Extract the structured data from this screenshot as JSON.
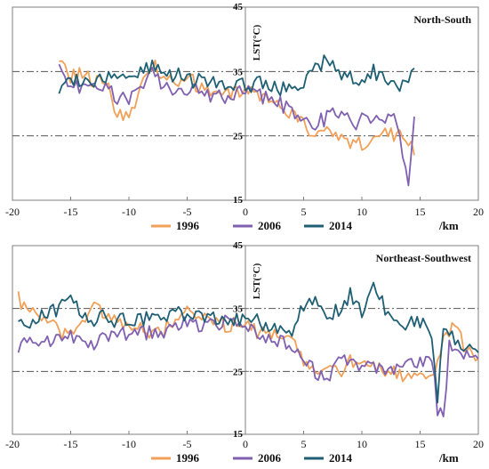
{
  "colors": {
    "1996": "#f0a058",
    "2006": "#8060b0",
    "2014": "#1e5f74",
    "axis": "#7f7f7f",
    "refline": "#555555"
  },
  "chart_data": [
    {
      "type": "line",
      "title": "North-South",
      "ylabel": "LST(°C)",
      "xunit": "/km",
      "xlim": [
        -20,
        20
      ],
      "ylim": [
        15,
        45
      ],
      "xticks": [
        "-20",
        "-15",
        "-10",
        "-5",
        "0",
        "5",
        "10",
        "15",
        "20"
      ],
      "yticks": [
        "15",
        "25",
        "35",
        "45"
      ],
      "reference_lines": [
        25,
        35
      ],
      "grid": false,
      "legend": "bottom",
      "x": [
        -16,
        -15,
        -14,
        -13,
        -12,
        -11,
        -10,
        -9,
        -8,
        -7,
        -6,
        -5,
        -4,
        -3,
        -2,
        -1,
        0,
        1,
        2,
        3,
        4,
        5,
        6,
        7,
        8,
        9,
        10,
        11,
        12,
        13,
        14,
        14.5
      ],
      "series": [
        {
          "name": "1996",
          "values": [
            37.5,
            34,
            35,
            33.5,
            33,
            29,
            27.5,
            33,
            36,
            34,
            33,
            33.5,
            33,
            32.5,
            32,
            31.5,
            32,
            31,
            30.5,
            29.5,
            28.5,
            26.5,
            25.5,
            26,
            24.5,
            23.5,
            24,
            25,
            25,
            25.5,
            24,
            22
          ]
        },
        {
          "name": "2006",
          "values": [
            35,
            32,
            33,
            32.5,
            32,
            31,
            30.5,
            33,
            35,
            33,
            32.5,
            32,
            32,
            31.5,
            31,
            31,
            32,
            31.5,
            30.5,
            30,
            29,
            27,
            26.5,
            28,
            28.5,
            27,
            27.5,
            27.5,
            27,
            27.5,
            18,
            28
          ]
        },
        {
          "name": "2014",
          "values": [
            32,
            33,
            34,
            33.5,
            34,
            34,
            34.5,
            35,
            35.5,
            35,
            34.5,
            33.5,
            33.5,
            33,
            33,
            32.5,
            33,
            33,
            33,
            32.5,
            32,
            33.5,
            35,
            37,
            34.5,
            34,
            33.5,
            35,
            33.5,
            33,
            34,
            35.5
          ]
        }
      ]
    },
    {
      "type": "line",
      "title": "Northeast-Southwest",
      "ylabel": "LST(°C)",
      "xunit": "/km",
      "xlim": [
        -20,
        20
      ],
      "ylim": [
        15,
        45
      ],
      "xticks": [
        "-20",
        "-15",
        "-10",
        "-5",
        "0",
        "5",
        "10",
        "15",
        "20"
      ],
      "yticks": [
        "15",
        "25",
        "35",
        "45"
      ],
      "reference_lines": [
        25,
        35
      ],
      "grid": false,
      "legend": "bottom",
      "x": [
        -19.5,
        -19,
        -18,
        -17,
        -16,
        -15,
        -14,
        -13,
        -12,
        -11,
        -10,
        -9,
        -8,
        -7,
        -6,
        -5,
        -4,
        -3,
        -2,
        -1,
        0,
        1,
        2,
        3,
        4,
        5,
        6,
        7,
        8,
        9,
        10,
        11,
        12,
        13,
        14,
        15,
        16,
        16.5,
        17,
        17.5,
        18,
        19,
        20
      ],
      "series": [
        {
          "name": "1996",
          "values": [
            36.5,
            35,
            34,
            33,
            31,
            32,
            33,
            35,
            34,
            32.5,
            32,
            31.5,
            31,
            31.5,
            33.5,
            34.5,
            33.5,
            33,
            32.5,
            32.5,
            32,
            31.5,
            31,
            30,
            29.5,
            27,
            26,
            25,
            24.5,
            26.5,
            27,
            25.5,
            25,
            25,
            24,
            24.5,
            25,
            26,
            31,
            30,
            33,
            28,
            27
          ]
        },
        {
          "name": "2006",
          "values": [
            28,
            30,
            30,
            29.5,
            30,
            31,
            30,
            29.5,
            30,
            31,
            31,
            31,
            31.5,
            31,
            32,
            32.5,
            32,
            32.5,
            33,
            32.5,
            31.5,
            31,
            30.5,
            30,
            28,
            26.5,
            25,
            24,
            26,
            27,
            26,
            25.5,
            25.5,
            25,
            26,
            26,
            27,
            19,
            17,
            30,
            29,
            28,
            27
          ]
        },
        {
          "name": "2014",
          "values": [
            32,
            32,
            33,
            34,
            35,
            36,
            34,
            33,
            34,
            33,
            33,
            33.5,
            33.5,
            34,
            34,
            34,
            33.5,
            33.5,
            33,
            33,
            33.5,
            33,
            32.5,
            32,
            31.5,
            35,
            36,
            34,
            35,
            37,
            34,
            38,
            35,
            33,
            32.5,
            33,
            31,
            20,
            32,
            31,
            30,
            29,
            28
          ]
        }
      ]
    }
  ]
}
